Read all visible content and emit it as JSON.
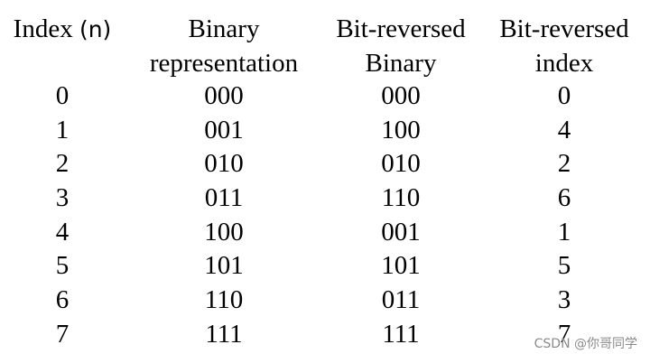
{
  "headers": [
    {
      "line1": "Index",
      "line1_suffix": "(n)",
      "line2": ""
    },
    {
      "line1": "Binary",
      "line1_suffix": "",
      "line2": "representation"
    },
    {
      "line1": "Bit-reversed",
      "line1_suffix": "",
      "line2": "Binary"
    },
    {
      "line1": "Bit-reversed",
      "line1_suffix": "",
      "line2": "index"
    }
  ],
  "rows": [
    [
      "0",
      "000",
      "000",
      "0"
    ],
    [
      "1",
      "001",
      "100",
      "4"
    ],
    [
      "2",
      "010",
      "010",
      "2"
    ],
    [
      "3",
      "011",
      "110",
      "6"
    ],
    [
      "4",
      "100",
      "001",
      "1"
    ],
    [
      "5",
      "101",
      "101",
      "5"
    ],
    [
      "6",
      "110",
      "011",
      "3"
    ],
    [
      "7",
      "111",
      "111",
      "7"
    ]
  ],
  "watermark": "CSDN @你哥同学"
}
